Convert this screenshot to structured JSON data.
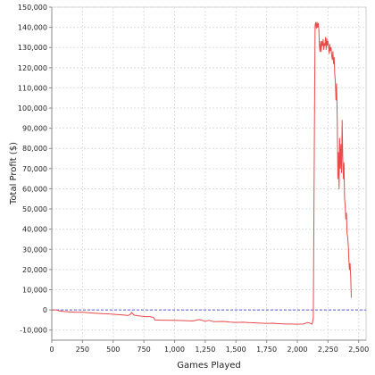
{
  "chart_data": {
    "type": "line",
    "title": "",
    "xlabel": "Games Played",
    "ylabel": "Total Profit ($)",
    "xlim": [
      0,
      2560
    ],
    "ylim": [
      -15000,
      150000
    ],
    "grid": true,
    "x_ticks": [
      0,
      250,
      500,
      750,
      1000,
      1250,
      1500,
      1750,
      2000,
      2250,
      2500
    ],
    "x_tick_labels": [
      "0",
      "250",
      "500",
      "750",
      "1,000",
      "1,250",
      "1,500",
      "1,750",
      "2,000",
      "2,250",
      "2,500"
    ],
    "y_ticks": [
      -10000,
      0,
      10000,
      20000,
      30000,
      40000,
      50000,
      60000,
      70000,
      80000,
      90000,
      100000,
      110000,
      120000,
      130000,
      140000,
      150000
    ],
    "y_tick_labels": [
      "-10,000",
      "0",
      "10,000",
      "20,000",
      "30,000",
      "40,000",
      "50,000",
      "60,000",
      "70,000",
      "80,000",
      "90,000",
      "100,000",
      "110,000",
      "120,000",
      "130,000",
      "140,000",
      "150,000"
    ],
    "reference_line": {
      "y": 0,
      "style": "dashed",
      "color": "#5a5ad6"
    },
    "series": [
      {
        "color": "#e84b4b",
        "x": [
          0,
          40,
          60,
          100,
          150,
          200,
          260,
          320,
          400,
          470,
          530,
          580,
          620,
          640,
          650,
          670,
          700,
          760,
          800,
          830,
          840,
          850,
          900,
          1000,
          1080,
          1150,
          1200,
          1250,
          1280,
          1320,
          1400,
          1450,
          1500,
          1560,
          1600,
          1680,
          1750,
          1800,
          1850,
          1900,
          1950,
          2000,
          2050,
          2080,
          2100,
          2120,
          2130,
          2140,
          2145,
          2150,
          2155,
          2160,
          2165,
          2170,
          2175,
          2180,
          2185,
          2190,
          2195,
          2200,
          2205,
          2210,
          2215,
          2220,
          2225,
          2230,
          2235,
          2240,
          2245,
          2250,
          2255,
          2260,
          2265,
          2270,
          2275,
          2280,
          2285,
          2290,
          2295,
          2300,
          2305,
          2310,
          2315,
          2320,
          2325,
          2330,
          2335,
          2340,
          2345,
          2350,
          2355,
          2360,
          2365,
          2370,
          2375,
          2380,
          2385,
          2390,
          2395,
          2400,
          2405,
          2410,
          2415,
          2420,
          2425,
          2430,
          2435,
          2440
        ],
        "y": [
          0,
          0,
          -500,
          -800,
          -1000,
          -1200,
          -1200,
          -1500,
          -1800,
          -2000,
          -2300,
          -2500,
          -2800,
          -2200,
          -1200,
          -2600,
          -2900,
          -3300,
          -3300,
          -3800,
          -5000,
          -5000,
          -5100,
          -5200,
          -5300,
          -5500,
          -4800,
          -5600,
          -5200,
          -5800,
          -5700,
          -6000,
          -6200,
          -6100,
          -6300,
          -6500,
          -6700,
          -6600,
          -6800,
          -7000,
          -7000,
          -7100,
          -7000,
          -6300,
          -6500,
          -7100,
          -4000,
          100000,
          141000,
          142500,
          139500,
          142500,
          140000,
          142000,
          139000,
          130000,
          128000,
          133000,
          128000,
          133000,
          131000,
          134000,
          129000,
          132000,
          131000,
          135000,
          129000,
          134500,
          131000,
          133000,
          130000,
          127000,
          131500,
          128500,
          130000,
          126000,
          124000,
          128000,
          122000,
          125000,
          117000,
          113000,
          104000,
          112000,
          95000,
          65000,
          78000,
          60000,
          85000,
          70000,
          82000,
          68000,
          94000,
          75000,
          65000,
          73000,
          55000,
          52000,
          45000,
          48000,
          38000,
          36000,
          32000,
          24000,
          20000,
          23000,
          16000,
          6000
        ]
      }
    ]
  }
}
